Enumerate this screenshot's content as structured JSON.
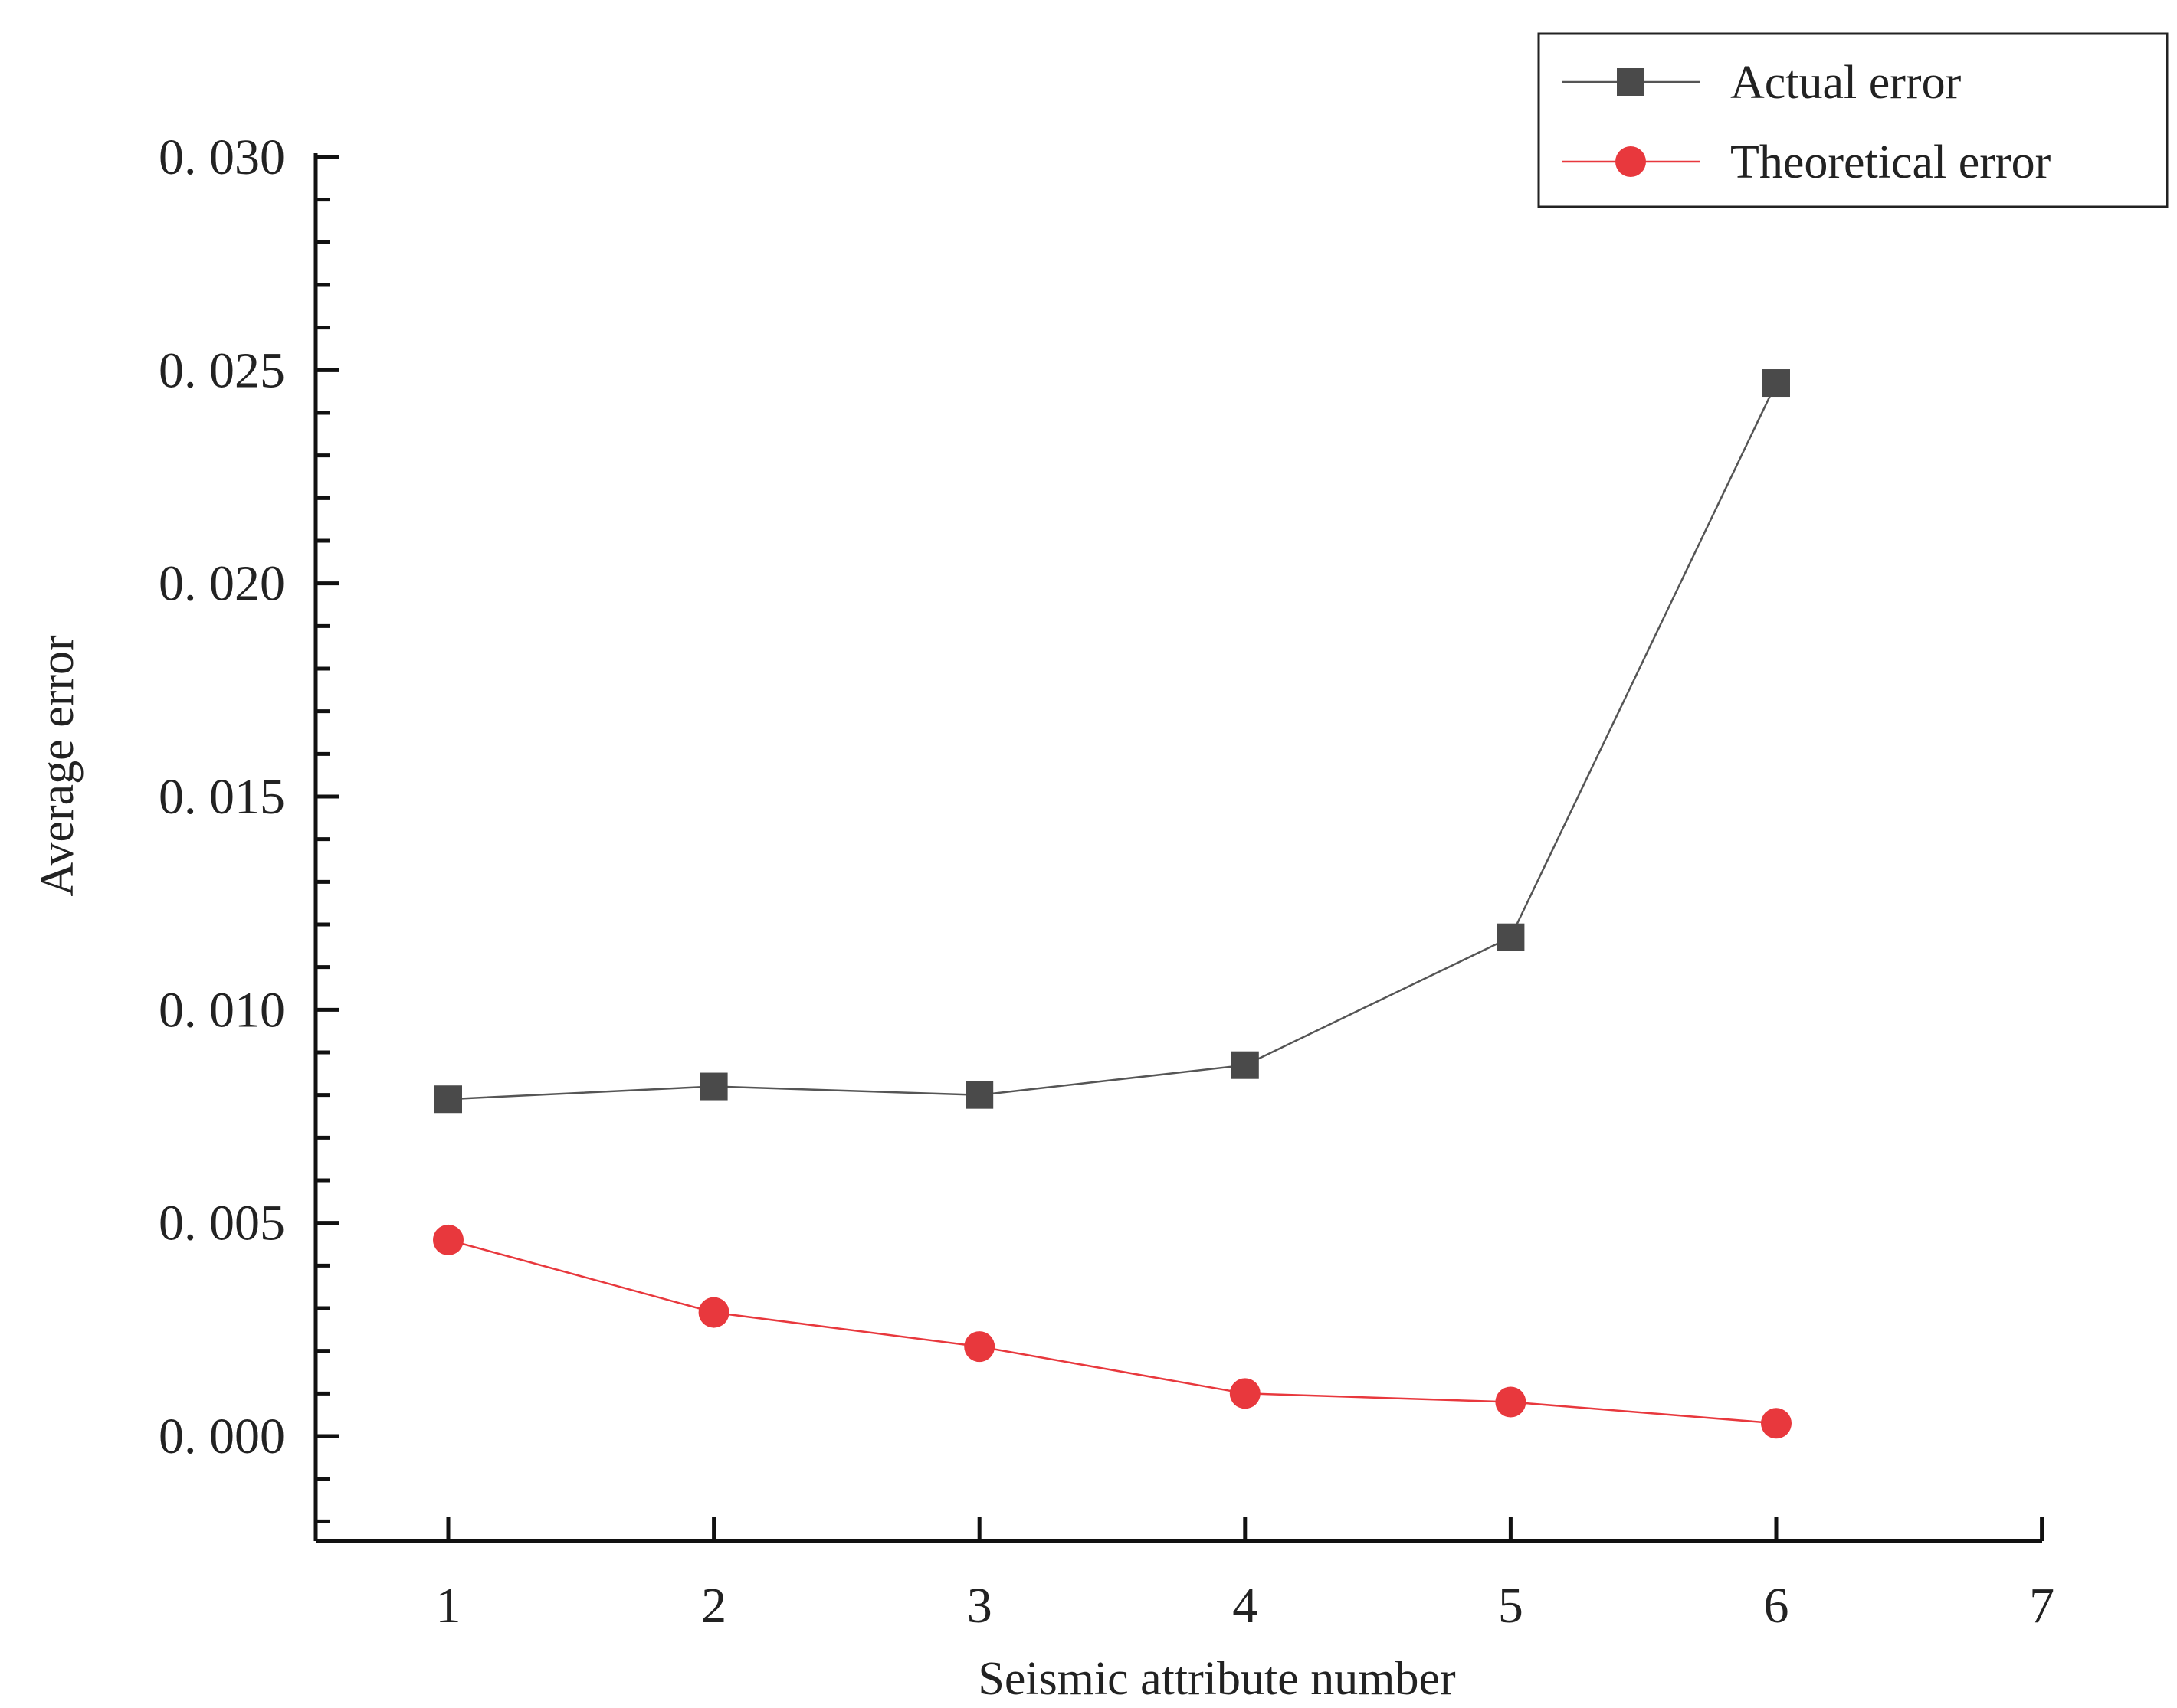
{
  "chart_data": {
    "type": "line",
    "title": "",
    "xlabel": "Seismic attribute number",
    "ylabel": "Average error",
    "xlim": [
      0.5,
      7
    ],
    "ylim": [
      -0.0025,
      0.03
    ],
    "x_ticks": [
      1,
      2,
      3,
      4,
      5,
      6,
      7
    ],
    "x_tick_labels": [
      "1",
      "2",
      "3",
      "4",
      "5",
      "6",
      "7"
    ],
    "y_ticks": [
      0.0,
      0.005,
      0.01,
      0.015,
      0.02,
      0.025,
      0.03
    ],
    "y_tick_labels": [
      "0. 000",
      "0. 005",
      "0. 010",
      "0. 015",
      "0. 020",
      "0. 025",
      "0. 030"
    ],
    "grid": false,
    "legend_position": "top-right",
    "x": [
      1,
      2,
      3,
      4,
      5,
      6
    ],
    "series": [
      {
        "name": "Actual error",
        "marker": "square",
        "color": "#4a4a4a",
        "line_color": "#555555",
        "values": [
          0.0079,
          0.0082,
          0.008,
          0.0087,
          0.0117,
          0.0247
        ]
      },
      {
        "name": "Theoretical error",
        "marker": "circle",
        "color": "#e8383d",
        "line_color": "#e8383d",
        "values": [
          0.0046,
          0.0029,
          0.0021,
          0.001,
          0.0008,
          0.0003
        ]
      }
    ]
  }
}
